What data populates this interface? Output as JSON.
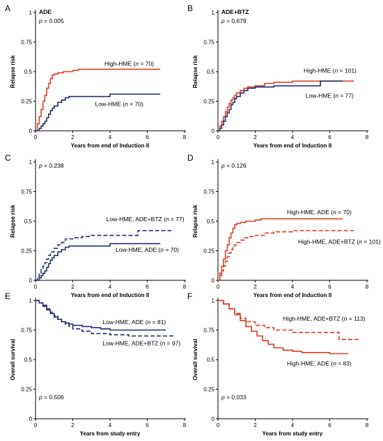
{
  "colors": {
    "high": "#e03c22",
    "low": "#1f2f6b",
    "axis": "#000000"
  },
  "chart_data": [
    {
      "panel_label": "A",
      "type": "line",
      "title": "ADE",
      "pvalue": {
        "prefix": "p",
        "value": " = 0.005"
      },
      "xlabel": "Years from end of Induction II",
      "ylabel": "Relapse risk",
      "xlim": [
        0,
        8
      ],
      "ylim": [
        0,
        1
      ],
      "x_ticks": [
        "0",
        "2",
        "4",
        "6",
        "8"
      ],
      "y_ticks": [
        "0",
        "0.25",
        "0.5",
        "0.75",
        "1"
      ],
      "series": [
        {
          "name": "High-HME",
          "n_label": "70",
          "color": "high",
          "dash": false,
          "x": [
            0,
            0.1,
            0.2,
            0.3,
            0.4,
            0.5,
            0.6,
            0.7,
            0.8,
            0.9,
            1.0,
            1.2,
            1.5,
            2.0,
            2.3,
            3.0,
            4.0,
            5.0,
            6.0,
            6.7
          ],
          "y": [
            0,
            0.06,
            0.12,
            0.18,
            0.25,
            0.3,
            0.36,
            0.4,
            0.44,
            0.47,
            0.48,
            0.49,
            0.5,
            0.51,
            0.52,
            0.52,
            0.52,
            0.52,
            0.52,
            0.52
          ]
        },
        {
          "name": "Low-HME",
          "n_label": "70",
          "color": "low",
          "dash": false,
          "x": [
            0,
            0.2,
            0.3,
            0.4,
            0.5,
            0.6,
            0.7,
            0.8,
            0.9,
            1.0,
            1.2,
            1.4,
            1.6,
            1.8,
            2.0,
            2.5,
            3.0,
            4.0,
            5.0,
            6.7
          ],
          "y": [
            0,
            0.02,
            0.04,
            0.06,
            0.08,
            0.11,
            0.14,
            0.17,
            0.19,
            0.21,
            0.24,
            0.26,
            0.28,
            0.29,
            0.29,
            0.29,
            0.29,
            0.31,
            0.31,
            0.31
          ]
        }
      ],
      "labels": [
        {
          "series": 0,
          "pos": [
            3.7,
            0.55
          ]
        },
        {
          "series": 1,
          "pos": [
            3.2,
            0.21
          ]
        }
      ]
    },
    {
      "panel_label": "B",
      "type": "line",
      "title": "ADE+BTZ",
      "pvalue": {
        "prefix": "p",
        "value": " = 0.679"
      },
      "xlabel": "Years from end of Induction II",
      "ylabel": "Relapse risk",
      "xlim": [
        0,
        8
      ],
      "ylim": [
        0,
        1
      ],
      "x_ticks": [
        "0",
        "2",
        "4",
        "6",
        "8"
      ],
      "y_ticks": [
        "0",
        "0.25",
        "0.5",
        "0.75",
        "1"
      ],
      "series": [
        {
          "name": "High-HME",
          "n_label": "101",
          "color": "high",
          "dash": false,
          "x": [
            0,
            0.1,
            0.2,
            0.3,
            0.4,
            0.5,
            0.6,
            0.7,
            0.8,
            0.9,
            1.0,
            1.2,
            1.4,
            1.6,
            2.0,
            2.5,
            3.0,
            4.0,
            5.5,
            7.3
          ],
          "y": [
            0,
            0.04,
            0.08,
            0.12,
            0.16,
            0.2,
            0.23,
            0.26,
            0.28,
            0.3,
            0.32,
            0.34,
            0.36,
            0.37,
            0.38,
            0.4,
            0.41,
            0.42,
            0.42,
            0.42
          ]
        },
        {
          "name": "Low-HME",
          "n_label": "77",
          "color": "low",
          "dash": false,
          "x": [
            0,
            0.1,
            0.2,
            0.3,
            0.4,
            0.5,
            0.6,
            0.7,
            0.8,
            0.9,
            1.0,
            1.2,
            1.4,
            1.6,
            2.0,
            2.5,
            3.0,
            4.0,
            5.5,
            6.7
          ],
          "y": [
            0,
            0.02,
            0.05,
            0.08,
            0.12,
            0.15,
            0.18,
            0.22,
            0.24,
            0.27,
            0.29,
            0.32,
            0.34,
            0.36,
            0.37,
            0.37,
            0.38,
            0.38,
            0.42,
            0.42
          ]
        }
      ],
      "labels": [
        {
          "series": 0,
          "pos": [
            4.6,
            0.49
          ]
        },
        {
          "series": 1,
          "pos": [
            4.7,
            0.28
          ]
        }
      ]
    },
    {
      "panel_label": "C",
      "type": "line",
      "title": "",
      "pvalue": {
        "prefix": "p",
        "value": " = 0.238"
      },
      "xlabel": "Years from end of Induction II",
      "ylabel": "Relapse risk",
      "xlim": [
        0,
        8
      ],
      "ylim": [
        0,
        1
      ],
      "x_ticks": [
        "0",
        "2",
        "4",
        "6",
        "8"
      ],
      "y_ticks": [
        "0",
        "0.25",
        "0.5",
        "0.75",
        "1"
      ],
      "series": [
        {
          "name": "Low-HME, ADE+BTZ",
          "n_label": "77",
          "color": "low",
          "dash": true,
          "x": [
            0,
            0.1,
            0.2,
            0.3,
            0.4,
            0.5,
            0.6,
            0.7,
            0.8,
            1.0,
            1.2,
            1.4,
            1.6,
            2.0,
            2.5,
            3.0,
            4.0,
            5.3,
            5.5,
            7.3
          ],
          "y": [
            0,
            0.03,
            0.06,
            0.09,
            0.12,
            0.15,
            0.18,
            0.21,
            0.24,
            0.27,
            0.3,
            0.32,
            0.35,
            0.36,
            0.37,
            0.38,
            0.38,
            0.38,
            0.42,
            0.42
          ]
        },
        {
          "name": "Low-HME, ADE",
          "n_label": "70",
          "color": "low",
          "dash": false,
          "x": [
            0,
            0.2,
            0.3,
            0.4,
            0.5,
            0.6,
            0.7,
            0.8,
            0.9,
            1.0,
            1.2,
            1.4,
            1.6,
            1.8,
            2.0,
            2.5,
            3.0,
            4.0,
            5.0,
            6.7
          ],
          "y": [
            0,
            0.02,
            0.04,
            0.06,
            0.08,
            0.11,
            0.14,
            0.17,
            0.19,
            0.21,
            0.24,
            0.26,
            0.28,
            0.29,
            0.29,
            0.29,
            0.29,
            0.31,
            0.31,
            0.31
          ]
        }
      ],
      "labels": [
        {
          "series": 0,
          "pos": [
            3.8,
            0.5
          ]
        },
        {
          "series": 1,
          "pos": [
            4.3,
            0.24
          ]
        }
      ]
    },
    {
      "panel_label": "D",
      "type": "line",
      "title": "",
      "pvalue": {
        "prefix": "p",
        "value": " = 0.126"
      },
      "xlabel": "Years from end of Induction II",
      "ylabel": "Relapse risk",
      "xlim": [
        0,
        8
      ],
      "ylim": [
        0,
        1
      ],
      "x_ticks": [
        "0",
        "2",
        "4",
        "6",
        "8"
      ],
      "y_ticks": [
        "0",
        "0.25",
        "0.5",
        "0.75",
        "1"
      ],
      "series": [
        {
          "name": "High-HME, ADE",
          "n_label": "70",
          "color": "high",
          "dash": false,
          "x": [
            0,
            0.1,
            0.2,
            0.3,
            0.4,
            0.5,
            0.6,
            0.7,
            0.8,
            0.9,
            1.0,
            1.2,
            1.5,
            2.0,
            2.3,
            3.0,
            4.0,
            5.0,
            6.0,
            6.7
          ],
          "y": [
            0,
            0.06,
            0.12,
            0.18,
            0.25,
            0.3,
            0.36,
            0.4,
            0.44,
            0.47,
            0.48,
            0.49,
            0.5,
            0.51,
            0.52,
            0.52,
            0.52,
            0.52,
            0.52,
            0.52
          ]
        },
        {
          "name": "High-HME, ADE+BTZ",
          "n_label": "101",
          "color": "high",
          "dash": true,
          "x": [
            0,
            0.1,
            0.2,
            0.3,
            0.4,
            0.5,
            0.6,
            0.7,
            0.8,
            0.9,
            1.0,
            1.2,
            1.4,
            1.6,
            2.0,
            2.5,
            3.0,
            4.0,
            5.5,
            7.3
          ],
          "y": [
            0,
            0.04,
            0.08,
            0.12,
            0.16,
            0.2,
            0.23,
            0.26,
            0.28,
            0.3,
            0.32,
            0.34,
            0.36,
            0.37,
            0.38,
            0.4,
            0.41,
            0.42,
            0.42,
            0.42
          ]
        }
      ],
      "labels": [
        {
          "series": 0,
          "pos": [
            3.7,
            0.56
          ]
        },
        {
          "series": 1,
          "pos": [
            4.3,
            0.31
          ]
        }
      ]
    },
    {
      "panel_label": "E",
      "type": "line",
      "title": "",
      "pvalue": {
        "prefix": "p",
        "value": " = 0.506"
      },
      "xlabel": "Years from study entry",
      "ylabel": "Overall survival",
      "xlim": [
        0,
        8
      ],
      "ylim": [
        0,
        1
      ],
      "x_ticks": [
        "0",
        "2",
        "4",
        "6",
        "8"
      ],
      "y_ticks": [
        "0",
        "0.25",
        "0.5",
        "0.75",
        "1"
      ],
      "series": [
        {
          "name": "Low-HME, ADE",
          "n_label": "81",
          "color": "low",
          "dash": false,
          "x": [
            0,
            0.2,
            0.4,
            0.6,
            0.8,
            1.0,
            1.2,
            1.4,
            1.6,
            1.8,
            2.0,
            2.5,
            3.0,
            3.5,
            4.0,
            5.0,
            6.0,
            7.0
          ],
          "y": [
            1,
            0.98,
            0.95,
            0.92,
            0.89,
            0.86,
            0.84,
            0.82,
            0.81,
            0.8,
            0.79,
            0.78,
            0.77,
            0.76,
            0.75,
            0.75,
            0.75,
            0.75
          ]
        },
        {
          "name": "Low-HME, ADE+BTZ",
          "n_label": "97",
          "color": "low",
          "dash": true,
          "x": [
            0,
            0.2,
            0.4,
            0.6,
            0.8,
            1.0,
            1.2,
            1.4,
            1.6,
            1.8,
            2.0,
            2.5,
            3.0,
            4.0,
            5.0,
            6.0,
            7.5
          ],
          "y": [
            1,
            0.98,
            0.96,
            0.93,
            0.9,
            0.87,
            0.84,
            0.82,
            0.8,
            0.78,
            0.76,
            0.74,
            0.72,
            0.71,
            0.7,
            0.7,
            0.7
          ]
        }
      ],
      "labels": [
        {
          "series": 0,
          "pos": [
            3.6,
            0.8
          ]
        },
        {
          "series": 1,
          "pos": [
            3.6,
            0.62
          ]
        }
      ]
    },
    {
      "panel_label": "F",
      "type": "line",
      "title": "",
      "pvalue": {
        "prefix": "p",
        "value": " = 0.033"
      },
      "xlabel": "Years from study entry",
      "ylabel": "Overall survival",
      "xlim": [
        0,
        8
      ],
      "ylim": [
        0,
        1
      ],
      "x_ticks": [
        "0",
        "2",
        "4",
        "6",
        "8"
      ],
      "y_ticks": [
        "0",
        "0.25",
        "0.5",
        "0.75",
        "1"
      ],
      "series": [
        {
          "name": "High-HME, ADE+BTZ",
          "n_label": "113",
          "color": "high",
          "dash": true,
          "x": [
            0,
            0.3,
            0.6,
            0.9,
            1.2,
            1.5,
            2.0,
            2.5,
            3.0,
            4.0,
            5.0,
            6.3,
            6.5,
            7.6
          ],
          "y": [
            1,
            0.97,
            0.93,
            0.89,
            0.85,
            0.82,
            0.79,
            0.77,
            0.75,
            0.73,
            0.73,
            0.73,
            0.67,
            0.67
          ]
        },
        {
          "name": "High-HME, ADE",
          "n_label": "83",
          "color": "high",
          "dash": false,
          "x": [
            0,
            0.3,
            0.6,
            0.9,
            1.2,
            1.5,
            1.8,
            2.1,
            2.4,
            2.7,
            3.0,
            3.5,
            4.0,
            4.5,
            5.0,
            6.0,
            7.0
          ],
          "y": [
            1,
            0.97,
            0.93,
            0.88,
            0.83,
            0.78,
            0.74,
            0.7,
            0.66,
            0.63,
            0.6,
            0.58,
            0.57,
            0.56,
            0.56,
            0.55,
            0.55
          ]
        }
      ],
      "labels": [
        {
          "series": 0,
          "pos": [
            3.5,
            0.83
          ]
        },
        {
          "series": 1,
          "pos": [
            3.7,
            0.45
          ]
        }
      ]
    }
  ]
}
